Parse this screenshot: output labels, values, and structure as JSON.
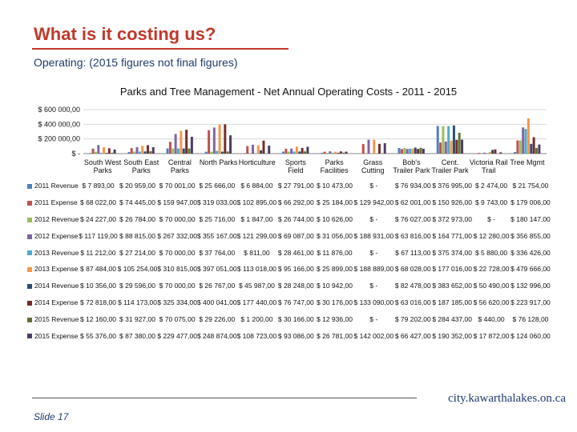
{
  "slide": {
    "title": "What is it costing us?",
    "subtitle": "Operating: (2015 figures not final figures)",
    "slide_number": "Slide 17",
    "website": "city.kawarthalakes.on.ca"
  },
  "chart_data": {
    "type": "bar",
    "title": "Parks and Tree Management - Net Annual Operating Costs - 2011 - 2015",
    "y_ticks": [
      "$ -",
      "$ 200 000,00",
      "$ 400 000,00",
      "$ 600 000,00"
    ],
    "ylim": [
      0,
      600000
    ],
    "categories": [
      "South West Parks",
      "South East Parks",
      "Central Parks",
      "North Parks",
      "Horticulture",
      "Sports Field",
      "Parks Facilities",
      "Grass Cutting",
      "Bob's Trailer Park",
      "Cent. Trailer Park",
      "Victoria Rail Trail",
      "Tree Mgmt"
    ],
    "series": [
      {
        "name": "2011 Revenue",
        "color": "#4f81bd",
        "values": [
          7893,
          20959,
          70001,
          25666,
          6884,
          27791,
          10473,
          0,
          76934,
          376995,
          2474,
          21754
        ],
        "labels": [
          "$ 7 893,00",
          "$ 20 959,00",
          "$ 70 001,00",
          "$ 25 666,00",
          "$ 6 884,00",
          "$ 27 791,00",
          "$ 10 473,00",
          "$ -",
          "$ 76 934,00",
          "$ 376 995,00",
          "$ 2 474,00",
          "$ 21 754,00"
        ]
      },
      {
        "name": "2011 Expense",
        "color": "#c0504d",
        "values": [
          68022,
          74445,
          159947,
          319033,
          102895,
          66292,
          25184,
          129942,
          62001,
          150926,
          9743,
          179006
        ],
        "labels": [
          "$ 68 022,00",
          "$ 74 445,00",
          "$ 159 947,00",
          "$ 319 033,00",
          "$ 102 895,00",
          "$ 66 292,00",
          "$ 25 184,00",
          "$ 129 942,00",
          "$ 62 001,00",
          "$ 150 926,00",
          "$ 9 743,00",
          "$ 179 006,00"
        ]
      },
      {
        "name": "2012 Revenue",
        "color": "#9bbb59",
        "values": [
          24227,
          26784,
          70000,
          25716,
          1847,
          26744,
          10626,
          0,
          76027,
          372973,
          0,
          180147
        ],
        "labels": [
          "$ 24 227,00",
          "$ 26 784,00",
          "$ 70 000,00",
          "$ 25 716,00",
          "$ 1 847,00",
          "$ 26 744,00",
          "$ 10 626,00",
          "$ -",
          "$ 76 027,00",
          "$ 372 973,00",
          "$ -",
          "$ 180 147,00"
        ]
      },
      {
        "name": "2012 Expense",
        "color": "#8064a2",
        "values": [
          117119,
          88815,
          267332,
          355167,
          121299,
          69087,
          31056,
          188931,
          63816,
          164771,
          12280,
          356855
        ],
        "labels": [
          "$ 117 119,00",
          "$ 88 815,00",
          "$ 267 332,00",
          "$ 355 167,00",
          "$ 121 299,00",
          "$ 69 087,00",
          "$ 31 056,00",
          "$ 188 931,00",
          "$ 63 816,00",
          "$ 164 771,00",
          "$ 12 280,00",
          "$ 356 855,00"
        ]
      },
      {
        "name": "2013 Revenue",
        "color": "#4bacc6",
        "values": [
          11212,
          27214,
          70000,
          37764,
          811,
          28461,
          11876,
          0,
          67113,
          375374,
          5880,
          336426
        ],
        "labels": [
          "$ 11 212,00",
          "$ 27 214,00",
          "$ 70 000,00",
          "$ 37 764,00",
          "$ 811,00",
          "$ 28 461,00",
          "$ 11 876,00",
          "$ -",
          "$ 67 113,00",
          "$ 375 374,00",
          "$ 5 880,00",
          "$ 336 426,00"
        ]
      },
      {
        "name": "2013 Expense",
        "color": "#f79646",
        "values": [
          87484,
          105254,
          310815,
          397051,
          113018,
          95166,
          25899,
          188889,
          68028,
          177016,
          22728,
          479666
        ],
        "labels": [
          "$ 87 484,00",
          "$ 105 254,00",
          "$ 310 815,00",
          "$ 397 051,00",
          "$ 113 018,00",
          "$ 95 166,00",
          "$ 25 899,00",
          "$ 188 889,00",
          "$ 68 028,00",
          "$ 177 016,00",
          "$ 22 728,00",
          "$ 479 666,00"
        ]
      },
      {
        "name": "2014 Revenue",
        "color": "#2c4d75",
        "values": [
          10356,
          29596,
          70000,
          26767,
          45987,
          28248,
          10942,
          0,
          82478,
          383652,
          50490,
          132996
        ],
        "labels": [
          "$ 10 356,00",
          "$ 29 596,00",
          "$ 70 000,00",
          "$ 26 767,00",
          "$ 45 987,00",
          "$ 28 248,00",
          "$ 10 942,00",
          "$ -",
          "$ 82 478,00",
          "$ 383 652,00",
          "$ 50 490,00",
          "$ 132 996,00"
        ]
      },
      {
        "name": "2014 Expense",
        "color": "#772c2a",
        "values": [
          72818,
          114173,
          325334,
          400041,
          177440,
          76747,
          30176,
          133090,
          63016,
          187185,
          56620,
          223917
        ],
        "labels": [
          "$ 72 818,00",
          "$ 114 173,00",
          "$ 325 334,00",
          "$ 400 041,00",
          "$ 177 440,00",
          "$ 76 747,00",
          "$ 30 176,00",
          "$ 133 090,00",
          "$ 63 016,00",
          "$ 187 185,00",
          "$ 56 620,00",
          "$ 223 917,00"
        ]
      },
      {
        "name": "2015 Revenue",
        "color": "#5f7530",
        "values": [
          12160,
          31927,
          70075,
          29226,
          1200,
          30166,
          12936,
          0,
          79202,
          284437,
          440,
          76128
        ],
        "labels": [
          "$ 12 160,00",
          "$ 31 927,00",
          "$ 70 075,00",
          "$ 29 226,00",
          "$ 1 200,00",
          "$ 30 166,00",
          "$ 12 936,00",
          "$ -",
          "$ 79 202,00",
          "$ 284 437,00",
          "$ 440,00",
          "$ 76 128,00"
        ]
      },
      {
        "name": "2015 Expense",
        "color": "#4d3b62",
        "values": [
          55376,
          87380,
          229477,
          248874,
          108723,
          93086,
          26781,
          142002,
          66427,
          190352,
          17872,
          124060
        ],
        "labels": [
          "$ 55 376,00",
          "$ 87 380,00",
          "$ 229 477,00",
          "$ 248 874,00",
          "$ 108 723,00",
          "$ 93 086,00",
          "$ 26 781,00",
          "$ 142 002,00",
          "$ 66 427,00",
          "$ 190 352,00",
          "$ 17 872,00",
          "$ 124 060,00"
        ]
      }
    ]
  }
}
